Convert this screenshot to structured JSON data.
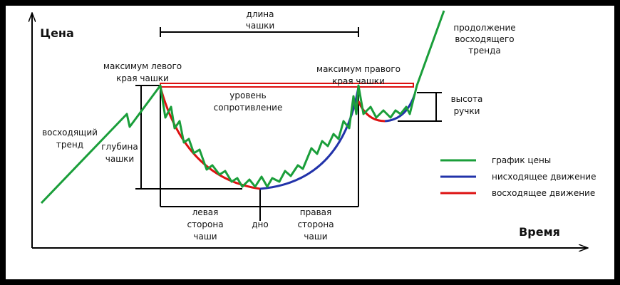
{
  "axes": {
    "y_label": "Цена",
    "x_label": "Время"
  },
  "labels": {
    "cup_length": [
      "длина",
      "чашки"
    ],
    "left_max": [
      "максимум левого",
      "края чашки"
    ],
    "right_max": [
      "максимум правого",
      "края чашки"
    ],
    "resistance": [
      "уровень",
      "сопротивление"
    ],
    "uptrend": [
      "восходящий",
      "тренд"
    ],
    "cup_depth": [
      "глубина",
      "чашки"
    ],
    "left_side": [
      "левая",
      "сторона",
      "чаши"
    ],
    "bottom": [
      "дно"
    ],
    "right_side": [
      "правая",
      "сторона",
      "чаши"
    ],
    "continuation": [
      "продолжение",
      "восходящего",
      "тренда"
    ],
    "handle_height": [
      "высота",
      "ручки"
    ]
  },
  "legend": [
    "график цены",
    "нисходящее движение",
    "восходящее движение"
  ]
}
